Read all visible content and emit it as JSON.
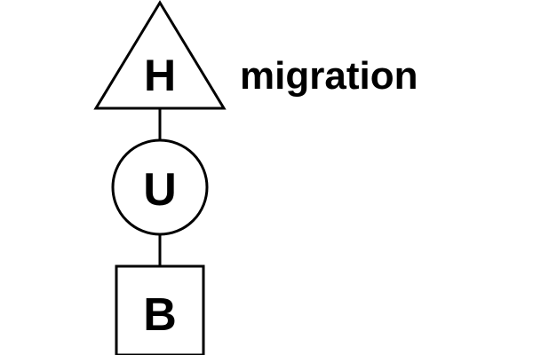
{
  "logo": {
    "letters": [
      "H",
      "U",
      "B"
    ],
    "word": "migration",
    "ink_color": "#000000",
    "background_color": "#ffffff"
  }
}
